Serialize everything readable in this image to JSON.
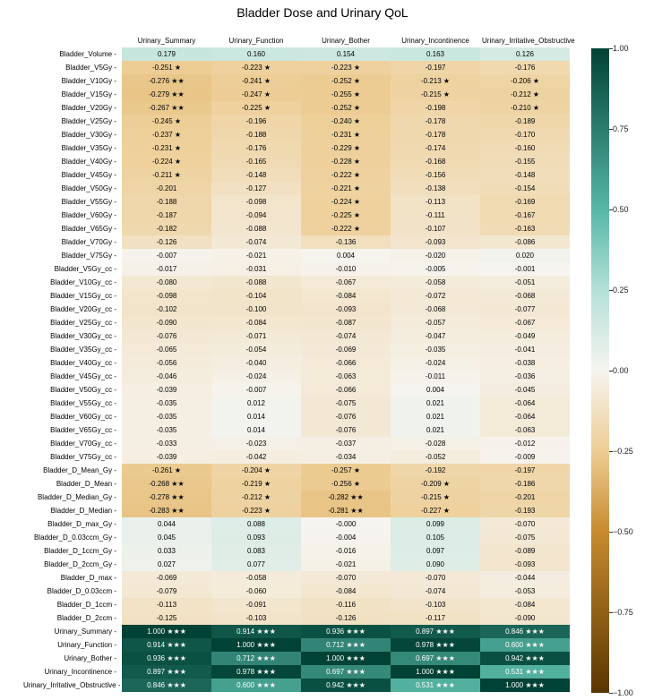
{
  "title": "Bladder Dose and Urinary QoL",
  "columns": [
    "Urinary_Summary",
    "Urinary_Function",
    "Urinary_Bother",
    "Urinary_Incontinence",
    "Urinary_Irritative_Obstructive"
  ],
  "rows": [
    "Bladder_Volume",
    "Bladder_V5Gy",
    "Bladder_V10Gy",
    "Bladder_V15Gy",
    "Bladder_V20Gy",
    "Bladder_V25Gy",
    "Bladder_V30Gy",
    "Bladder_V35Gy",
    "Bladder_V40Gy",
    "Bladder_V45Gy",
    "Bladder_V50Gy",
    "Bladder_V55Gy",
    "Bladder_V60Gy",
    "Bladder_V65Gy",
    "Bladder_V70Gy",
    "Bladder_V75Gy",
    "Bladder_V5Gy_cc",
    "Bladder_V10Gy_cc",
    "Bladder_V15Gy_cc",
    "Bladder_V20Gy_cc",
    "Bladder_V25Gy_cc",
    "Bladder_V30Gy_cc",
    "Bladder_V35Gy_cc",
    "Bladder_V40Gy_cc",
    "Bladder_V45Gy_cc",
    "Bladder_V50Gy_cc",
    "Bladder_V55Gy_cc",
    "Bladder_V60Gy_cc",
    "Bladder_V65Gy_cc",
    "Bladder_V70Gy_cc",
    "Bladder_V75Gy_cc",
    "Bladder_D_Mean_Gy",
    "Bladder_D_Mean",
    "Bladder_D_Median_Gy",
    "Bladder_D_Median",
    "Bladder_D_max_Gy",
    "Bladder_D_0.03ccm_Gy",
    "Bladder_D_1ccm_Gy",
    "Bladder_D_2ccm_Gy",
    "Bladder_D_max",
    "Bladder_D_0.03ccm",
    "Bladder_D_1ccm",
    "Bladder_D_2ccm",
    "Urinary_Summary",
    "Urinary_Function",
    "Urinary_Bother",
    "Urinary_Incontinence",
    "Urinary_Irritative_Obstructive"
  ],
  "cells": [
    [
      [
        "0.179",
        ""
      ],
      [
        "0.160",
        ""
      ],
      [
        "0.154",
        ""
      ],
      [
        "0.163",
        ""
      ],
      [
        "0.126",
        ""
      ]
    ],
    [
      [
        "-0.251",
        "★"
      ],
      [
        "-0.223",
        "★"
      ],
      [
        "-0.223",
        "★"
      ],
      [
        "-0.197",
        ""
      ],
      [
        "-0.176",
        ""
      ]
    ],
    [
      [
        "-0.276",
        "★★"
      ],
      [
        "-0.241",
        "★"
      ],
      [
        "-0.252",
        "★"
      ],
      [
        "-0.213",
        "★"
      ],
      [
        "-0.206",
        "★"
      ]
    ],
    [
      [
        "-0.279",
        "★★"
      ],
      [
        "-0.247",
        "★"
      ],
      [
        "-0.255",
        "★"
      ],
      [
        "-0.215",
        "★"
      ],
      [
        "-0.212",
        "★"
      ]
    ],
    [
      [
        "-0.267",
        "★★"
      ],
      [
        "-0.225",
        "★"
      ],
      [
        "-0.252",
        "★"
      ],
      [
        "-0.198",
        ""
      ],
      [
        "-0.210",
        "★"
      ]
    ],
    [
      [
        "-0.245",
        "★"
      ],
      [
        "-0.196",
        ""
      ],
      [
        "-0.240",
        "★"
      ],
      [
        "-0.178",
        ""
      ],
      [
        "-0.189",
        ""
      ]
    ],
    [
      [
        "-0.237",
        "★"
      ],
      [
        "-0.188",
        ""
      ],
      [
        "-0.231",
        "★"
      ],
      [
        "-0.178",
        ""
      ],
      [
        "-0.170",
        ""
      ]
    ],
    [
      [
        "-0.231",
        "★"
      ],
      [
        "-0.176",
        ""
      ],
      [
        "-0.229",
        "★"
      ],
      [
        "-0.174",
        ""
      ],
      [
        "-0.160",
        ""
      ]
    ],
    [
      [
        "-0.224",
        "★"
      ],
      [
        "-0.165",
        ""
      ],
      [
        "-0.228",
        "★"
      ],
      [
        "-0.168",
        ""
      ],
      [
        "-0.155",
        ""
      ]
    ],
    [
      [
        "-0.211",
        "★"
      ],
      [
        "-0.148",
        ""
      ],
      [
        "-0.222",
        "★"
      ],
      [
        "-0.156",
        ""
      ],
      [
        "-0.148",
        ""
      ]
    ],
    [
      [
        "-0.201",
        ""
      ],
      [
        "-0.127",
        ""
      ],
      [
        "-0.221",
        "★"
      ],
      [
        "-0.138",
        ""
      ],
      [
        "-0.154",
        ""
      ]
    ],
    [
      [
        "-0.188",
        ""
      ],
      [
        "-0.098",
        ""
      ],
      [
        "-0.224",
        "★"
      ],
      [
        "-0.113",
        ""
      ],
      [
        "-0.169",
        ""
      ]
    ],
    [
      [
        "-0.187",
        ""
      ],
      [
        "-0.094",
        ""
      ],
      [
        "-0.225",
        "★"
      ],
      [
        "-0.111",
        ""
      ],
      [
        "-0.167",
        ""
      ]
    ],
    [
      [
        "-0.182",
        ""
      ],
      [
        "-0.088",
        ""
      ],
      [
        "-0.222",
        "★"
      ],
      [
        "-0.107",
        ""
      ],
      [
        "-0.163",
        ""
      ]
    ],
    [
      [
        "-0.126",
        ""
      ],
      [
        "-0.074",
        ""
      ],
      [
        "-0.136",
        ""
      ],
      [
        "-0.093",
        ""
      ],
      [
        "-0.086",
        ""
      ]
    ],
    [
      [
        "-0.007",
        ""
      ],
      [
        "-0.021",
        ""
      ],
      [
        "0.004",
        ""
      ],
      [
        "-0.020",
        ""
      ],
      [
        "0.020",
        ""
      ]
    ],
    [
      [
        "-0.017",
        ""
      ],
      [
        "-0.031",
        ""
      ],
      [
        "-0.010",
        ""
      ],
      [
        "-0.005",
        ""
      ],
      [
        "-0.001",
        ""
      ]
    ],
    [
      [
        "-0.080",
        ""
      ],
      [
        "-0.088",
        ""
      ],
      [
        "-0.067",
        ""
      ],
      [
        "-0.058",
        ""
      ],
      [
        "-0.051",
        ""
      ]
    ],
    [
      [
        "-0.098",
        ""
      ],
      [
        "-0.104",
        ""
      ],
      [
        "-0.084",
        ""
      ],
      [
        "-0.072",
        ""
      ],
      [
        "-0.068",
        ""
      ]
    ],
    [
      [
        "-0.102",
        ""
      ],
      [
        "-0.100",
        ""
      ],
      [
        "-0.093",
        ""
      ],
      [
        "-0.068",
        ""
      ],
      [
        "-0.077",
        ""
      ]
    ],
    [
      [
        "-0.090",
        ""
      ],
      [
        "-0.084",
        ""
      ],
      [
        "-0.087",
        ""
      ],
      [
        "-0.057",
        ""
      ],
      [
        "-0.067",
        ""
      ]
    ],
    [
      [
        "-0.076",
        ""
      ],
      [
        "-0.071",
        ""
      ],
      [
        "-0.074",
        ""
      ],
      [
        "-0.047",
        ""
      ],
      [
        "-0.049",
        ""
      ]
    ],
    [
      [
        "-0.065",
        ""
      ],
      [
        "-0.054",
        ""
      ],
      [
        "-0.069",
        ""
      ],
      [
        "-0.035",
        ""
      ],
      [
        "-0.041",
        ""
      ]
    ],
    [
      [
        "-0.056",
        ""
      ],
      [
        "-0.040",
        ""
      ],
      [
        "-0.066",
        ""
      ],
      [
        "-0.024",
        ""
      ],
      [
        "-0.038",
        ""
      ]
    ],
    [
      [
        "-0.046",
        ""
      ],
      [
        "-0.024",
        ""
      ],
      [
        "-0.063",
        ""
      ],
      [
        "-0.011",
        ""
      ],
      [
        "-0.036",
        ""
      ]
    ],
    [
      [
        "-0.039",
        ""
      ],
      [
        "-0.007",
        ""
      ],
      [
        "-0.066",
        ""
      ],
      [
        "0.004",
        ""
      ],
      [
        "-0.045",
        ""
      ]
    ],
    [
      [
        "-0.035",
        ""
      ],
      [
        "0.012",
        ""
      ],
      [
        "-0.075",
        ""
      ],
      [
        "0.021",
        ""
      ],
      [
        "-0.064",
        ""
      ]
    ],
    [
      [
        "-0.035",
        ""
      ],
      [
        "0.014",
        ""
      ],
      [
        "-0.076",
        ""
      ],
      [
        "0.021",
        ""
      ],
      [
        "-0.064",
        ""
      ]
    ],
    [
      [
        "-0.035",
        ""
      ],
      [
        "0.014",
        ""
      ],
      [
        "-0.076",
        ""
      ],
      [
        "0.021",
        ""
      ],
      [
        "-0.063",
        ""
      ]
    ],
    [
      [
        "-0.033",
        ""
      ],
      [
        "-0.023",
        ""
      ],
      [
        "-0.037",
        ""
      ],
      [
        "-0.028",
        ""
      ],
      [
        "-0.012",
        ""
      ]
    ],
    [
      [
        "-0.039",
        ""
      ],
      [
        "-0.042",
        ""
      ],
      [
        "-0.034",
        ""
      ],
      [
        "-0.052",
        ""
      ],
      [
        "-0.009",
        ""
      ]
    ],
    [
      [
        "-0.261",
        "★"
      ],
      [
        "-0.204",
        "★"
      ],
      [
        "-0.257",
        "★"
      ],
      [
        "-0.192",
        ""
      ],
      [
        "-0.197",
        ""
      ]
    ],
    [
      [
        "-0.268",
        "★★"
      ],
      [
        "-0.219",
        "★"
      ],
      [
        "-0.256",
        "★"
      ],
      [
        "-0.209",
        "★"
      ],
      [
        "-0.186",
        ""
      ]
    ],
    [
      [
        "-0.278",
        "★★"
      ],
      [
        "-0.212",
        "★"
      ],
      [
        "-0.282",
        "★★"
      ],
      [
        "-0.215",
        "★"
      ],
      [
        "-0.201",
        ""
      ]
    ],
    [
      [
        "-0.283",
        "★★"
      ],
      [
        "-0.223",
        "★"
      ],
      [
        "-0.281",
        "★★"
      ],
      [
        "-0.227",
        "★"
      ],
      [
        "-0.193",
        ""
      ]
    ],
    [
      [
        "0.044",
        ""
      ],
      [
        "0.088",
        ""
      ],
      [
        "-0.000",
        ""
      ],
      [
        "0.099",
        ""
      ],
      [
        "-0.070",
        ""
      ]
    ],
    [
      [
        "0.045",
        ""
      ],
      [
        "0.093",
        ""
      ],
      [
        "-0.004",
        ""
      ],
      [
        "0.105",
        ""
      ],
      [
        "-0.075",
        ""
      ]
    ],
    [
      [
        "0.033",
        ""
      ],
      [
        "0.083",
        ""
      ],
      [
        "-0.016",
        ""
      ],
      [
        "0.097",
        ""
      ],
      [
        "-0.089",
        ""
      ]
    ],
    [
      [
        "0.027",
        ""
      ],
      [
        "0.077",
        ""
      ],
      [
        "-0.021",
        ""
      ],
      [
        "0.090",
        ""
      ],
      [
        "-0.093",
        ""
      ]
    ],
    [
      [
        "-0.069",
        ""
      ],
      [
        "-0.058",
        ""
      ],
      [
        "-0.070",
        ""
      ],
      [
        "-0.070",
        ""
      ],
      [
        "-0.044",
        ""
      ]
    ],
    [
      [
        "-0.079",
        ""
      ],
      [
        "-0.060",
        ""
      ],
      [
        "-0.084",
        ""
      ],
      [
        "-0.074",
        ""
      ],
      [
        "-0.053",
        ""
      ]
    ],
    [
      [
        "-0.113",
        ""
      ],
      [
        "-0.091",
        ""
      ],
      [
        "-0.116",
        ""
      ],
      [
        "-0.103",
        ""
      ],
      [
        "-0.084",
        ""
      ]
    ],
    [
      [
        "-0.125",
        ""
      ],
      [
        "-0.103",
        ""
      ],
      [
        "-0.126",
        ""
      ],
      [
        "-0.117",
        ""
      ],
      [
        "-0.090",
        ""
      ]
    ],
    [
      [
        "1.000",
        "★★★"
      ],
      [
        "0.914",
        "★★★"
      ],
      [
        "0.936",
        "★★★"
      ],
      [
        "0.897",
        "★★★"
      ],
      [
        "0.846",
        "★★★"
      ]
    ],
    [
      [
        "0.914",
        "★★★"
      ],
      [
        "1.000",
        "★★★"
      ],
      [
        "0.712",
        "★★★"
      ],
      [
        "0.978",
        "★★★"
      ],
      [
        "0.600",
        "★★★"
      ]
    ],
    [
      [
        "0.936",
        "★★★"
      ],
      [
        "0.712",
        "★★★"
      ],
      [
        "1.000",
        "★★★"
      ],
      [
        "0.697",
        "★★★"
      ],
      [
        "0.942",
        "★★★"
      ]
    ],
    [
      [
        "0.897",
        "★★★"
      ],
      [
        "0.978",
        "★★★"
      ],
      [
        "0.697",
        "★★★"
      ],
      [
        "1.000",
        "★★★"
      ],
      [
        "0.531",
        "★★★"
      ]
    ],
    [
      [
        "0.846",
        "★★★"
      ],
      [
        "0.600",
        "★★★"
      ],
      [
        "0.942",
        "★★★"
      ],
      [
        "0.531",
        "★★★"
      ],
      [
        "1.000",
        "★★★"
      ]
    ]
  ],
  "colorscale": {
    "stops": [
      [
        -1.0,
        "#5a3600"
      ],
      [
        -0.5,
        "#c78b2f"
      ],
      [
        -0.25,
        "#edcd94"
      ],
      [
        0.0,
        "#f6f4ef"
      ],
      [
        0.25,
        "#b3e0d7"
      ],
      [
        0.5,
        "#57b7a6"
      ],
      [
        1.0,
        "#004235"
      ]
    ],
    "ticks": [
      "-1.00",
      "-0.75",
      "-0.50",
      "-0.25",
      "0.00",
      "0.25",
      "0.50",
      "0.75",
      "1.00"
    ]
  }
}
